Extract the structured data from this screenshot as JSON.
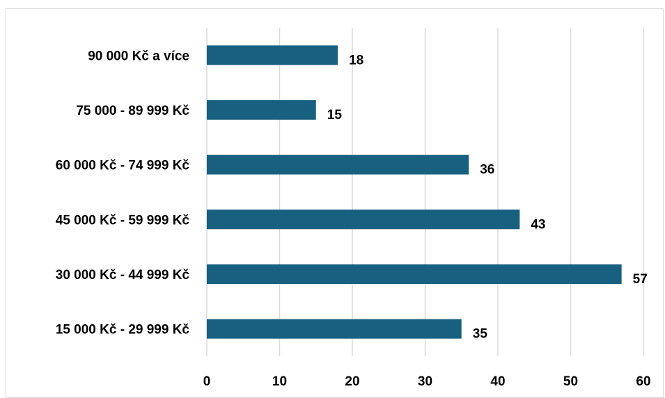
{
  "chart_data": {
    "type": "bar",
    "orientation": "horizontal",
    "categories": [
      "90 000 Kč a více",
      "75 000 - 89 999 Kč",
      "60 000 Kč - 74 999 Kč",
      "45 000 Kč - 59 999 Kč",
      "30 000 Kč - 44 999 Kč",
      "15 000 Kč - 29 999 Kč"
    ],
    "values": [
      18,
      15,
      36,
      43,
      57,
      35
    ],
    "xlim": [
      0,
      60
    ],
    "x_ticks": [
      0,
      10,
      20,
      30,
      40,
      50,
      60
    ],
    "grid": true,
    "legend": "none",
    "bar_color": "#17607f",
    "title": "",
    "xlabel": "",
    "ylabel": ""
  }
}
